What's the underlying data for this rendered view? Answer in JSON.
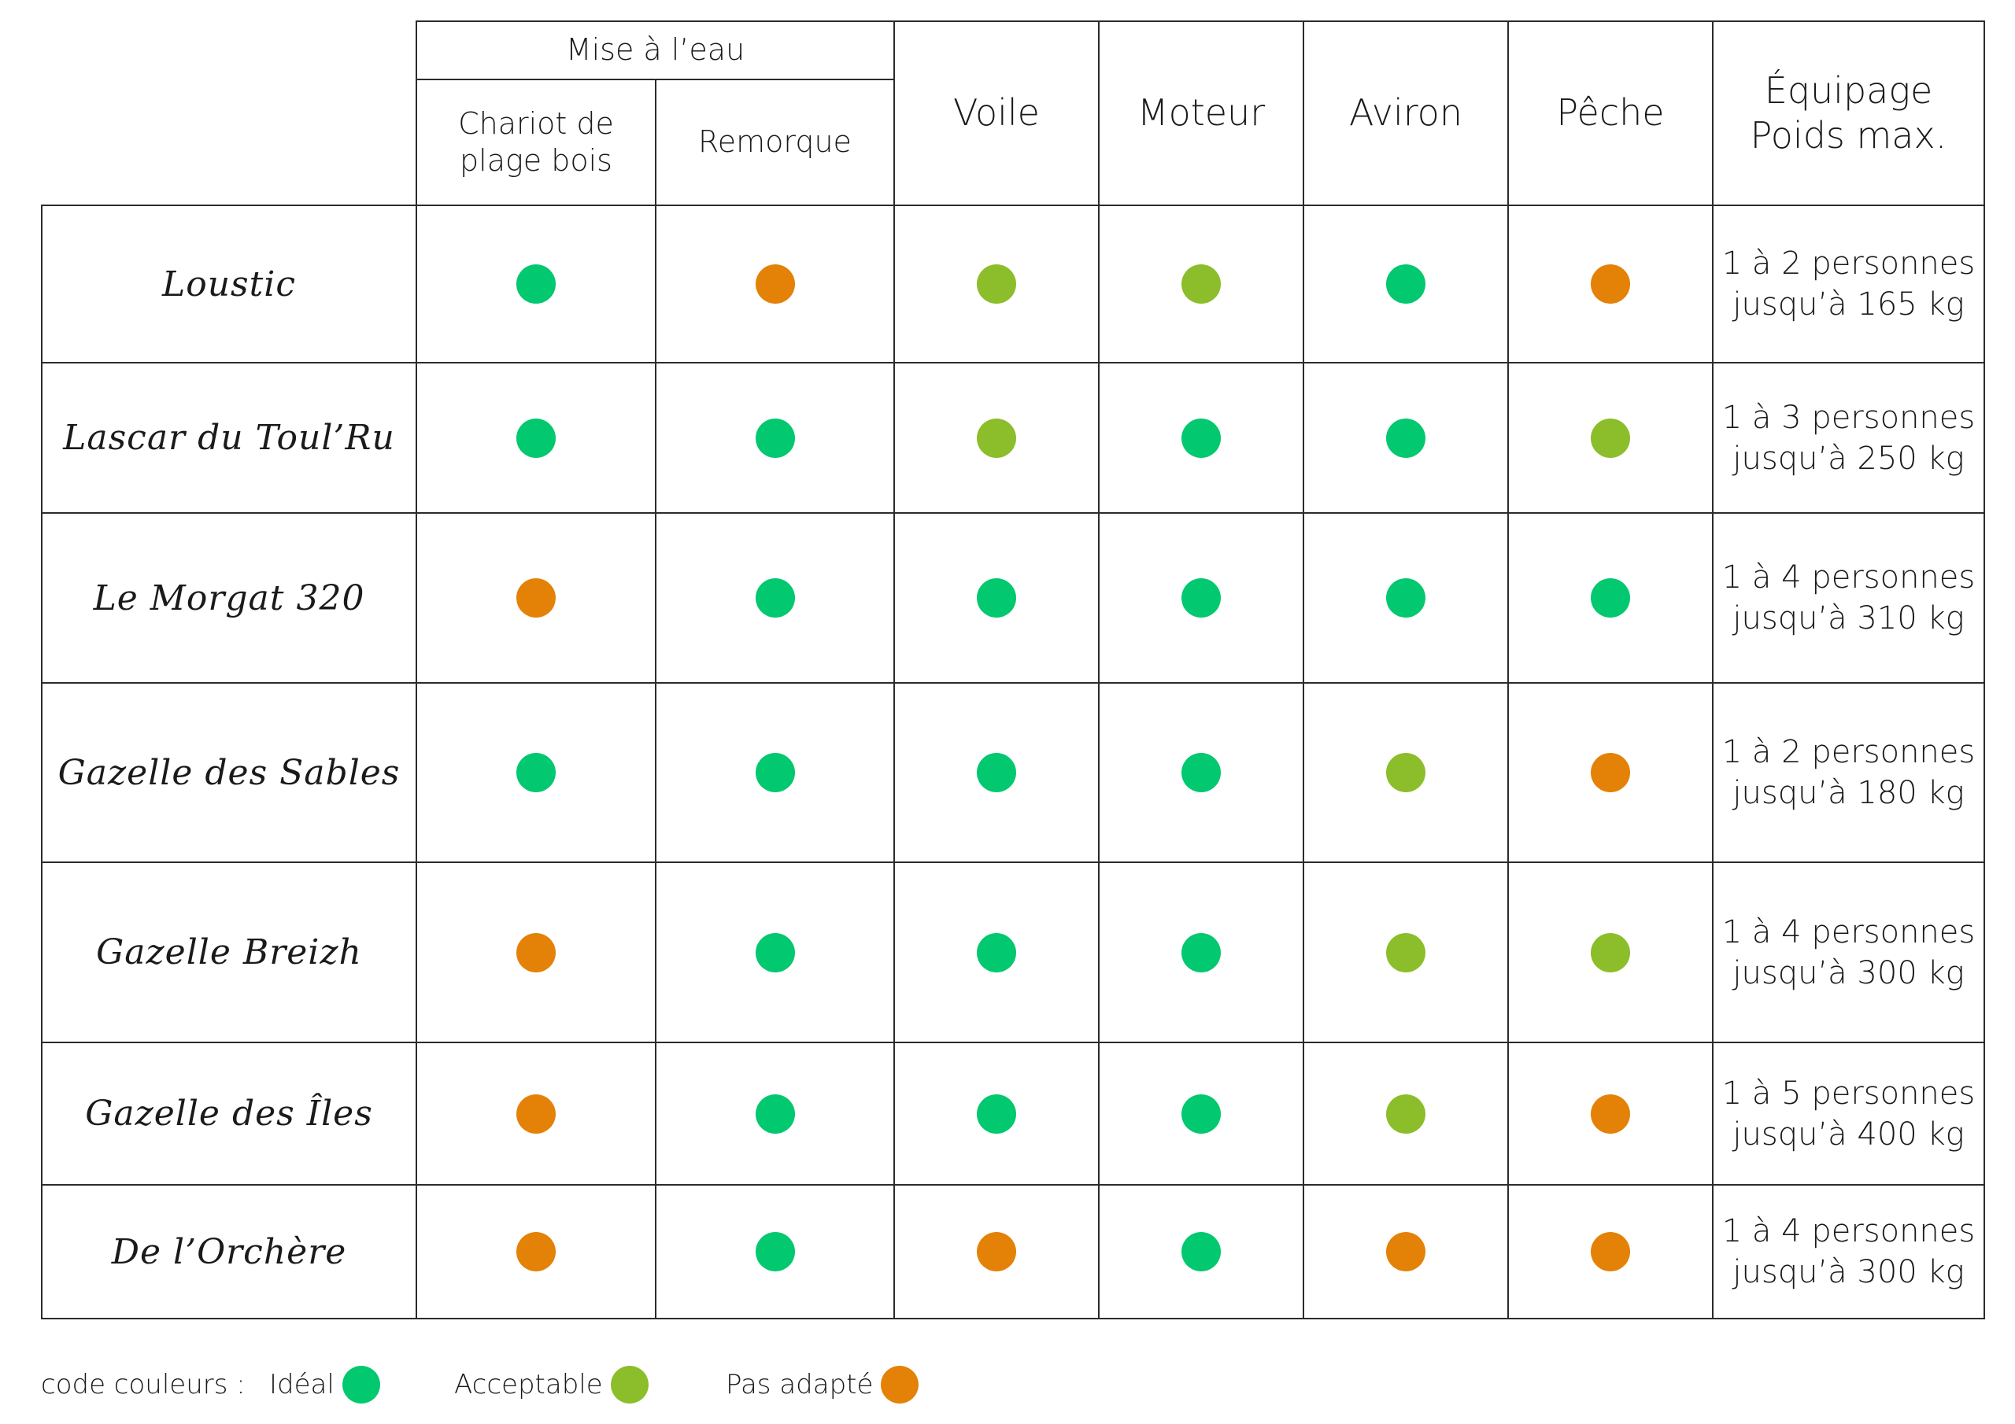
{
  "colors": {
    "ideal": "#02c86f",
    "acceptable": "#8cbd2a",
    "not_suitable": "#e38207"
  },
  "header": {
    "group_label": "Mise à l’eau",
    "columns": [
      {
        "key": "chariot",
        "label": [
          "Chariot de",
          "plage bois"
        ]
      },
      {
        "key": "remorque",
        "label": [
          "Remorque"
        ]
      },
      {
        "key": "voile",
        "label": [
          "Voile"
        ]
      },
      {
        "key": "moteur",
        "label": [
          "Moteur"
        ]
      },
      {
        "key": "aviron",
        "label": [
          "Aviron"
        ]
      },
      {
        "key": "peche",
        "label": [
          "Pêche"
        ]
      },
      {
        "key": "equipage",
        "label": [
          "Équipage",
          "Poids max."
        ]
      }
    ]
  },
  "rows": [
    {
      "name": "Loustic",
      "ratings": [
        "ideal",
        "not_suitable",
        "acceptable",
        "acceptable",
        "ideal",
        "not_suitable"
      ],
      "crew": [
        "1 à 2 personnes",
        "jusqu’à 165 kg"
      ]
    },
    {
      "name": "Lascar du Toul’Ru",
      "ratings": [
        "ideal",
        "ideal",
        "acceptable",
        "ideal",
        "ideal",
        "acceptable"
      ],
      "crew": [
        "1 à 3 personnes",
        "jusqu’à 250 kg"
      ]
    },
    {
      "name": "Le Morgat 320",
      "ratings": [
        "not_suitable",
        "ideal",
        "ideal",
        "ideal",
        "ideal",
        "ideal"
      ],
      "crew": [
        "1 à 4 personnes",
        "jusqu’à 310 kg"
      ]
    },
    {
      "name": "Gazelle des Sables",
      "ratings": [
        "ideal",
        "ideal",
        "ideal",
        "ideal",
        "acceptable",
        "not_suitable"
      ],
      "crew": [
        "1 à 2 personnes",
        "jusqu’à 180 kg"
      ]
    },
    {
      "name": "Gazelle Breizh",
      "ratings": [
        "not_suitable",
        "ideal",
        "ideal",
        "ideal",
        "acceptable",
        "acceptable"
      ],
      "crew": [
        "1 à 4 personnes",
        "jusqu’à 300 kg"
      ]
    },
    {
      "name": "Gazelle des Îles",
      "ratings": [
        "not_suitable",
        "ideal",
        "ideal",
        "ideal",
        "acceptable",
        "not_suitable"
      ],
      "crew": [
        "1 à 5 personnes",
        "jusqu’à 400 kg"
      ]
    },
    {
      "name": "De l’Orchère",
      "ratings": [
        "not_suitable",
        "ideal",
        "not_suitable",
        "ideal",
        "not_suitable",
        "not_suitable"
      ],
      "crew": [
        "1 à 4 personnes",
        "jusqu’à 300 kg"
      ]
    }
  ],
  "legend": {
    "title": "code couleurs :",
    "items": [
      {
        "label": "Idéal",
        "rating": "ideal"
      },
      {
        "label": "Acceptable",
        "rating": "acceptable"
      },
      {
        "label": "Pas adapté",
        "rating": "not_suitable"
      }
    ]
  }
}
